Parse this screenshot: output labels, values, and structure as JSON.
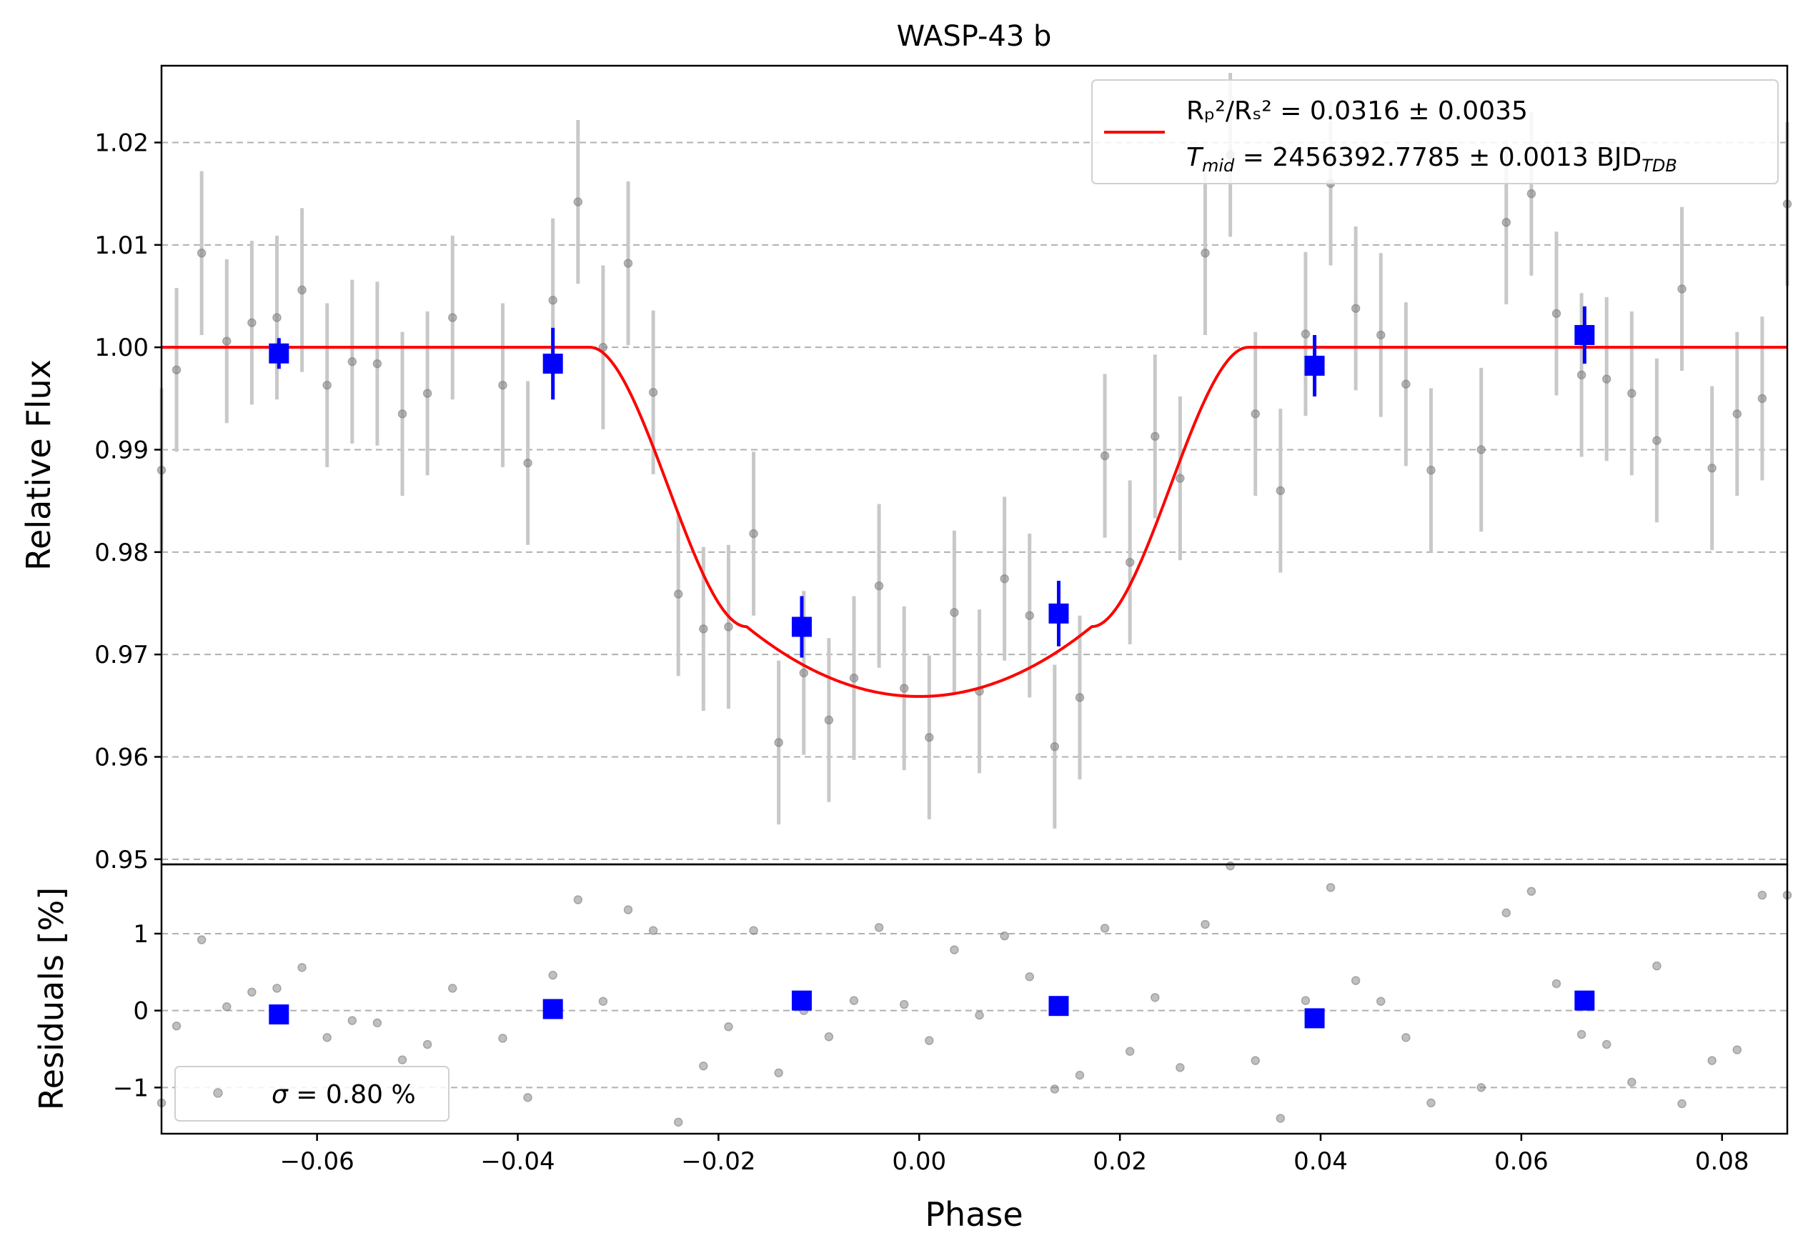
{
  "chart_data": {
    "type": "scatter",
    "title": "WASP-43 b",
    "xlabel": "Phase",
    "xlim": [
      -0.0755,
      0.0865
    ],
    "x_ticks": [
      -0.06,
      -0.04,
      -0.02,
      0.0,
      0.02,
      0.04,
      0.06,
      0.08
    ],
    "x_tick_labels": [
      "−0.06",
      "−0.04",
      "−0.02",
      "0.00",
      "0.02",
      "0.04",
      "0.06",
      "0.08"
    ],
    "grid": "horizontal dashed",
    "colors": {
      "data": "#808080",
      "errorbar": "#c8c8c8",
      "binned": "#0000ff",
      "model": "#ff0000"
    },
    "top_panel": {
      "ylabel": "Relative Flux",
      "ylim": [
        0.9495,
        1.0275
      ],
      "y_ticks": [
        0.95,
        0.96,
        0.97,
        0.98,
        0.99,
        1.0,
        1.01,
        1.02
      ],
      "y_tick_labels": [
        "0.95",
        "0.96",
        "0.97",
        "0.98",
        "0.99",
        "1.00",
        "1.01",
        "1.02"
      ],
      "legend": {
        "position": "top-right",
        "line1_main": "Rₚ²/Rₛ² = 0.0316 ± 0.0035",
        "line2_main": "T",
        "line2_sub": "mid",
        "line2_value": " = 2456392.7785 ± 0.0013 BJD",
        "line2_unit_sub": "TDB"
      },
      "series": [
        {
          "kind": "data",
          "x": [
            -0.0755,
            -0.074,
            -0.0715,
            -0.069,
            -0.0665,
            -0.064,
            -0.0615,
            -0.059,
            -0.0565,
            -0.054,
            -0.0515,
            -0.049,
            -0.0465,
            -0.0415,
            -0.039,
            -0.0365,
            -0.034,
            -0.0315,
            -0.029,
            -0.0265,
            -0.024,
            -0.0215,
            -0.019,
            -0.0165,
            -0.014,
            -0.0115,
            -0.009,
            -0.0065,
            -0.004,
            -0.0015,
            0.001,
            0.0035,
            0.006,
            0.0085,
            0.011,
            0.0135,
            0.016,
            0.0185,
            0.021,
            0.0235,
            0.026,
            0.0285,
            0.031,
            0.0335,
            0.036,
            0.0385,
            0.041,
            0.0435,
            0.046,
            0.0485,
            0.051,
            0.056,
            0.0585,
            0.061,
            0.0635,
            0.066,
            0.0685,
            0.071,
            0.0735,
            0.076,
            0.079,
            0.0815,
            0.084,
            0.0865
          ],
          "y": [
            0.988,
            0.9978,
            1.0092,
            1.0006,
            1.0024,
            1.0029,
            1.0056,
            0.9963,
            0.9986,
            0.9984,
            0.9935,
            0.9955,
            1.0029,
            0.9963,
            0.9887,
            1.0046,
            1.0142,
            1.0,
            1.0082,
            0.9956,
            0.9759,
            0.9725,
            0.9727,
            0.9818,
            0.9614,
            0.9682,
            0.9636,
            0.9677,
            0.9767,
            0.9667,
            0.9619,
            0.9741,
            0.9664,
            0.9774,
            0.9738,
            0.961,
            0.9658,
            0.9894,
            0.979,
            0.9913,
            0.9872,
            1.0092,
            1.0188,
            0.9935,
            0.986,
            1.0013,
            1.016,
            1.0038,
            1.0012,
            0.9964,
            0.988,
            0.99,
            1.0122,
            1.015,
            1.0033,
            0.9973,
            0.9969,
            0.9955,
            0.9909,
            1.0057,
            0.9882,
            0.9935,
            0.995,
            1.014
          ],
          "yerr": 0.008
        },
        {
          "kind": "binned",
          "x": [
            -0.0638,
            -0.0365,
            -0.0117,
            0.0139,
            0.0394,
            0.0663
          ],
          "y": [
            0.9994,
            0.9984,
            0.9727,
            0.974,
            0.9982,
            1.0012
          ],
          "yerr": [
            0.0015,
            0.0035,
            0.003,
            0.0032,
            0.003,
            0.0028
          ]
        },
        {
          "kind": "model",
          "name": "transit model",
          "baseline": 1.0,
          "depth": 0.0341,
          "t1": 0.0328,
          "t2": 0.0172
        }
      ]
    },
    "bottom_panel": {
      "ylabel": "Residuals [%]",
      "ylim": [
        -1.6,
        1.9
      ],
      "y_ticks": [
        -1,
        0,
        1
      ],
      "y_tick_labels": [
        "−1",
        "0",
        "1"
      ],
      "legend": {
        "position": "bottom-left",
        "text_sigma": "σ",
        "text_rest": " = 0.80 %"
      },
      "series": [
        {
          "kind": "data",
          "x": [
            -0.0755,
            -0.074,
            -0.0715,
            -0.069,
            -0.0665,
            -0.064,
            -0.0615,
            -0.059,
            -0.0565,
            -0.054,
            -0.0515,
            -0.049,
            -0.0465,
            -0.0415,
            -0.039,
            -0.0365,
            -0.034,
            -0.0315,
            -0.029,
            -0.0265,
            -0.024,
            -0.0215,
            -0.019,
            -0.0165,
            -0.014,
            -0.0115,
            -0.009,
            -0.0065,
            -0.004,
            -0.0015,
            0.001,
            0.0035,
            0.006,
            0.0085,
            0.011,
            0.0135,
            0.016,
            0.0185,
            0.021,
            0.0235,
            0.026,
            0.0285,
            0.031,
            0.0335,
            0.036,
            0.0385,
            0.041,
            0.0435,
            0.046,
            0.0485,
            0.051,
            0.056,
            0.0585,
            0.061,
            0.0635,
            0.066,
            0.0685,
            0.071,
            0.0735,
            0.076,
            0.079,
            0.0815,
            0.084,
            0.0865
          ],
          "y": [
            -1.2,
            -0.2,
            0.92,
            0.05,
            0.24,
            0.29,
            0.56,
            -0.35,
            -0.13,
            -0.16,
            -0.64,
            -0.44,
            0.29,
            -0.36,
            -1.13,
            0.46,
            1.44,
            0.12,
            1.31,
            1.04,
            -1.45,
            -0.72,
            -0.21,
            1.04,
            -0.81,
            0.0,
            -0.34,
            0.13,
            1.08,
            0.08,
            -0.39,
            0.79,
            -0.06,
            0.97,
            0.44,
            -1.02,
            -0.84,
            1.07,
            -0.53,
            0.17,
            -0.74,
            1.12,
            1.88,
            -0.65,
            -1.4,
            0.13,
            1.6,
            0.39,
            0.12,
            -0.35,
            -1.2,
            -1.0,
            1.27,
            1.55,
            0.35,
            -0.31,
            -0.44,
            -0.93,
            0.58,
            -1.21,
            -0.65,
            -0.51,
            1.5,
            1.5
          ]
        },
        {
          "kind": "binned",
          "x": [
            -0.0638,
            -0.0365,
            -0.0117,
            0.0139,
            0.0394,
            0.0663
          ],
          "y": [
            -0.05,
            0.02,
            0.13,
            0.06,
            -0.1,
            0.13
          ]
        }
      ]
    }
  }
}
